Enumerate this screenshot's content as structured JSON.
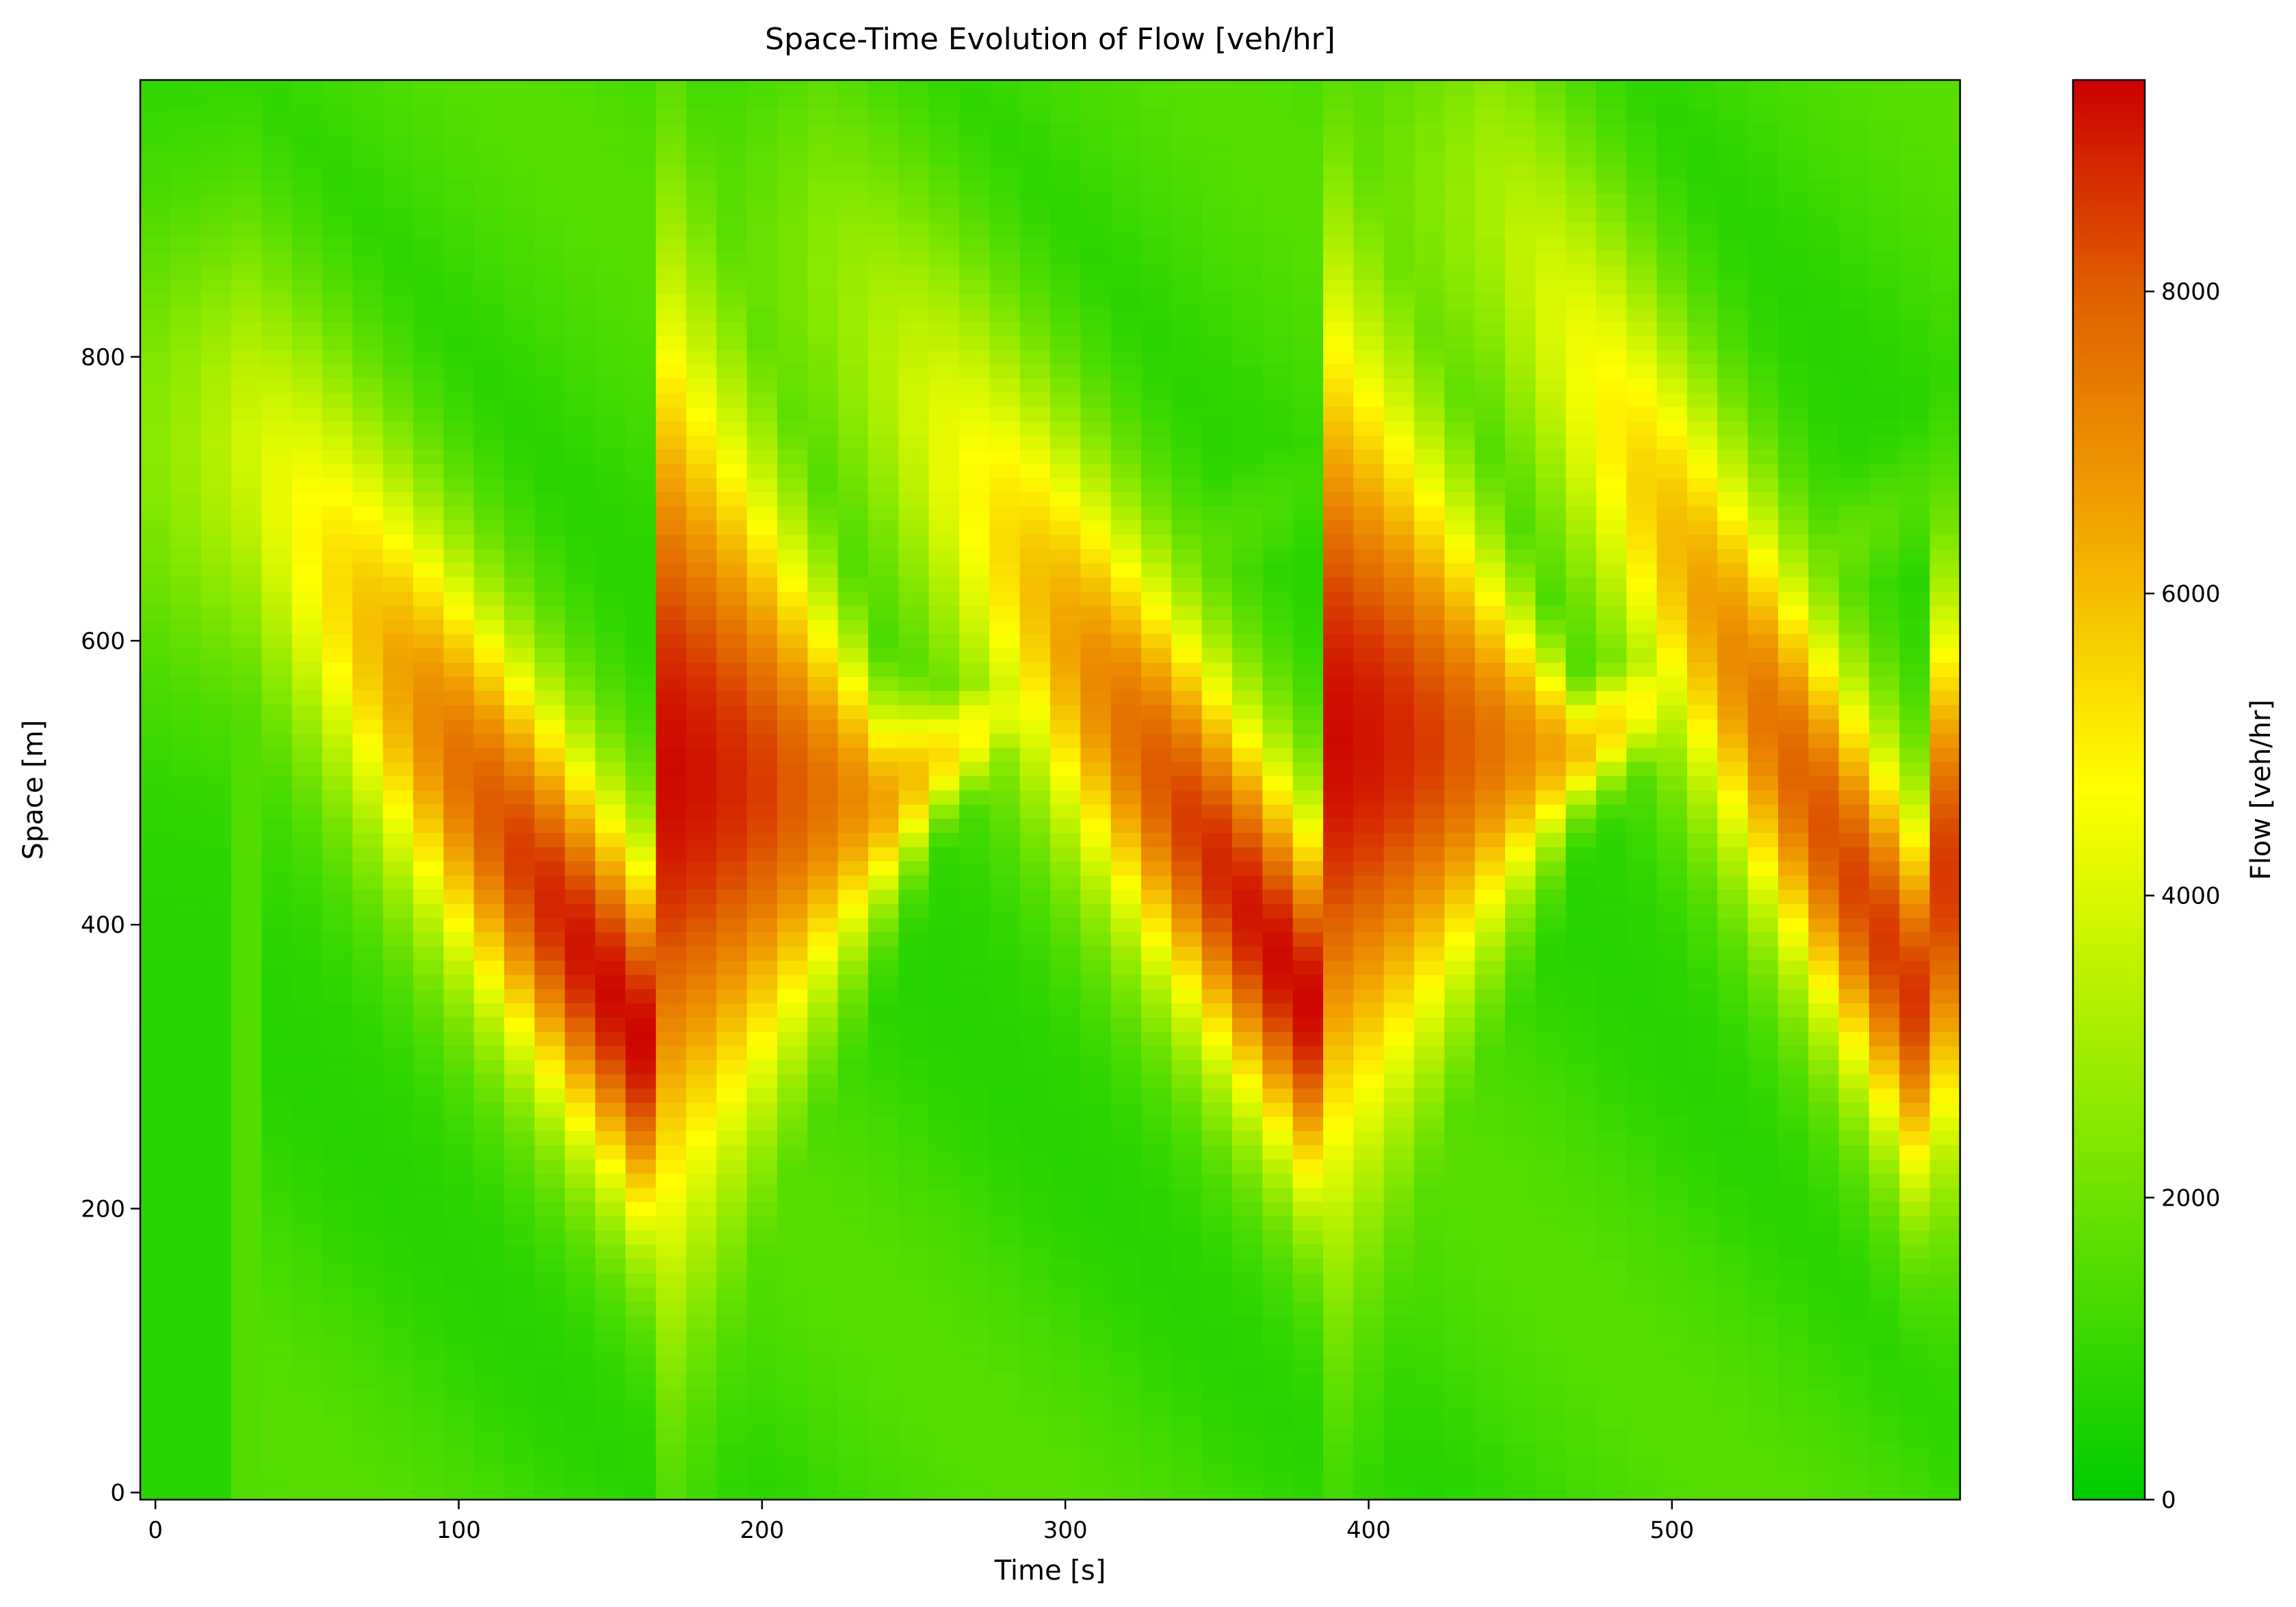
{
  "chart_data": {
    "type": "heatmap",
    "title": "Space-Time Evolution of Flow [veh/hr]",
    "xlabel": "Time [s]",
    "ylabel": "Space [m]",
    "xlim": [
      -5,
      595
    ],
    "ylim": [
      -5,
      995
    ],
    "x_ticks": [
      0,
      100,
      200,
      300,
      400,
      500
    ],
    "y_ticks": [
      0,
      200,
      400,
      600,
      800
    ],
    "colorbar": {
      "label": "Flow [veh/hr]",
      "range": [
        0,
        9400
      ],
      "ticks": [
        0,
        2000,
        4000,
        6000,
        8000
      ],
      "colors": [
        [
          0.0,
          "#00cc00"
        ],
        [
          0.25,
          "#80e600"
        ],
        [
          0.5,
          "#ffff00"
        ],
        [
          0.7,
          "#f0a000"
        ],
        [
          0.85,
          "#e06000"
        ],
        [
          1.0,
          "#cc0000"
        ]
      ]
    },
    "grid": false,
    "cell_size": {
      "time_s": 10,
      "space_m": 10
    },
    "field_model": {
      "background_low": 700,
      "background_high": 1600,
      "congestion_waves": [
        {
          "center_time_s": 160,
          "upstream_front": {
            "time_s": [
              30,
              170
            ],
            "space_m": [
              580,
              160
            ]
          },
          "downstream_front": {
            "time_s": [
              160,
              240
            ],
            "space_m": [
              860,
              560
            ]
          },
          "peak_flow": 9300
        },
        {
          "center_time_s": 380,
          "upstream_front": {
            "time_s": [
              220,
              385
            ],
            "space_m": [
              700,
              200
            ]
          },
          "downstream_front": {
            "time_s": [
              375,
              470
            ],
            "space_m": [
              880,
              560
            ]
          },
          "peak_flow": 9300
        },
        {
          "center_time_s": 580,
          "upstream_front": {
            "time_s": [
              440,
              580
            ],
            "space_m": [
              750,
              220
            ]
          },
          "downstream_front": {
            "time_s": [
              560,
              600
            ],
            "space_m": [
              780,
              560
            ]
          },
          "peak_flow": 8600
        }
      ]
    }
  }
}
